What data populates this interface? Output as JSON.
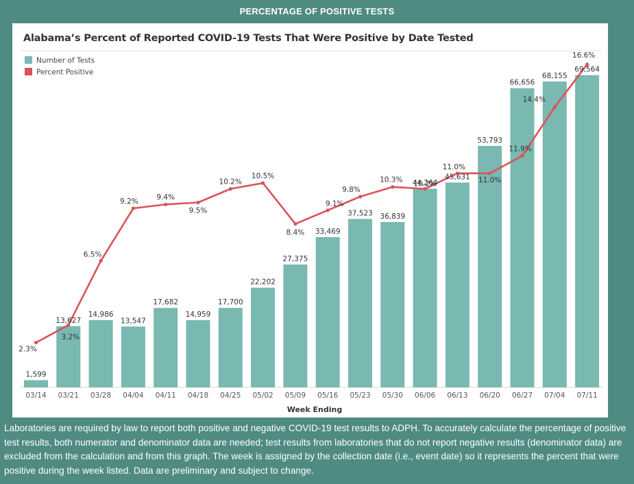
{
  "header": {
    "title": "PERCENTAGE OF POSITIVE TESTS"
  },
  "footnote": "Laboratories are required by law to report both positive and negative COVID-19 test results to ADPH. To accurately calculate the percentage of positive test results, both numerator and denominator data are needed; test results from laboratories that do not report negative results (denominator data) are excluded from the calculation and from this graph. The week is assigned by the collection date (i.e., event date) so it represents the percent that were positive during the week listed. Data are preliminary and subject to change.",
  "colors": {
    "bar": "#7ab8b2",
    "line": "#d9535a",
    "header_bg": "#4f8b82"
  },
  "chart_data": {
    "type": "bar",
    "title": "Alabama’s Percent of Reported COVID-19 Tests That Were Positive by Date Tested",
    "xlabel": "Week Ending",
    "ylabel": "",
    "categories": [
      "03/14",
      "03/21",
      "03/28",
      "04/04",
      "04/11",
      "04/18",
      "04/25",
      "05/02",
      "05/09",
      "05/16",
      "05/23",
      "05/30",
      "06/06",
      "06/13",
      "06/20",
      "06/27",
      "07/04",
      "07/11"
    ],
    "series": [
      {
        "name": "Number of Tests",
        "type": "bar",
        "values": [
          1599,
          13627,
          14986,
          13547,
          17682,
          14959,
          17700,
          22202,
          27375,
          33469,
          37523,
          36839,
          44264,
          45631,
          53793,
          66656,
          68155,
          69564
        ],
        "labels": [
          "1,599",
          "13,627",
          "14,986",
          "13,547",
          "17,682",
          "14,959",
          "17,700",
          "22,202",
          "27,375",
          "33,469",
          "37,523",
          "36,839",
          "44,264",
          "45,631",
          "53,793",
          "66,656",
          "68,155",
          "69,564"
        ]
      },
      {
        "name": "Percent Positive",
        "type": "line",
        "values": [
          2.3,
          3.2,
          6.5,
          9.2,
          9.4,
          9.5,
          10.2,
          10.5,
          8.4,
          9.1,
          9.8,
          10.3,
          10.2,
          11.0,
          11.0,
          11.9,
          14.4,
          16.6
        ],
        "labels": [
          "2.3%",
          "3.2%",
          "6.5%",
          "9.2%",
          "9.4%",
          "9.5%",
          "10.2%",
          "10.5%",
          "8.4%",
          "9.1%",
          "9.8%",
          "10.3%",
          "10.2%",
          "11.0%",
          "11.0%",
          "11.9%",
          "14.4%",
          "16.6%"
        ]
      }
    ],
    "legend": [
      "Number of Tests",
      "Percent Positive"
    ],
    "legend_position": "top-left",
    "bar_ylim": [
      0,
      75000
    ],
    "line_ylim": [
      0,
      17.3
    ],
    "grid": false
  }
}
